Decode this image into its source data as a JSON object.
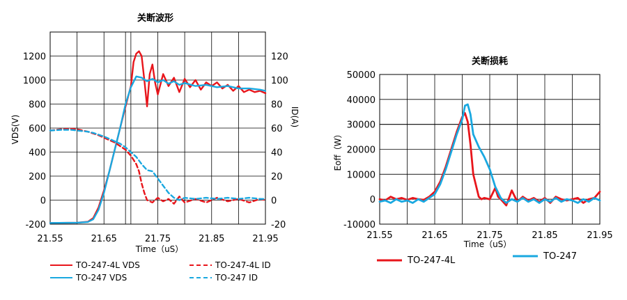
{
  "chart_data": [
    {
      "type": "line",
      "title": "关断波形",
      "xlabel": "Time（uS）",
      "ylabel": "VDS(V)",
      "y2label": "ID(A)",
      "xlim": [
        21.55,
        21.95
      ],
      "ylim": [
        -200,
        1400
      ],
      "y2lim": [
        -20,
        140
      ],
      "xticks": [
        "21.55",
        "21.65",
        "21.75",
        "21.85",
        "21.95"
      ],
      "yticks": [
        "-200",
        "0",
        "200",
        "400",
        "600",
        "800",
        "1000",
        "1200"
      ],
      "y2ticks": [
        "-20",
        "0",
        "20",
        "40",
        "60",
        "80",
        "100",
        "120"
      ],
      "cursor_x": 21.69,
      "grid": true,
      "series": [
        {
          "name": "TO-247-4L VDS",
          "axis": "left",
          "style": "solid",
          "color": "#e8151b",
          "x": [
            21.55,
            21.6,
            21.62,
            21.63,
            21.64,
            21.65,
            21.66,
            21.67,
            21.68,
            21.69,
            21.7,
            21.705,
            21.71,
            21.715,
            21.72,
            21.725,
            21.73,
            21.735,
            21.74,
            21.745,
            21.75,
            21.76,
            21.77,
            21.78,
            21.79,
            21.8,
            21.81,
            21.82,
            21.83,
            21.84,
            21.85,
            21.86,
            21.87,
            21.88,
            21.89,
            21.9,
            21.91,
            21.92,
            21.93,
            21.94,
            21.95
          ],
          "y": [
            -190,
            -188,
            -180,
            -150,
            -60,
            80,
            240,
            420,
            600,
            780,
            950,
            1150,
            1220,
            1240,
            1200,
            1000,
            780,
            1050,
            1130,
            980,
            880,
            1050,
            950,
            1020,
            900,
            1010,
            940,
            1000,
            920,
            980,
            950,
            980,
            930,
            960,
            910,
            950,
            900,
            920,
            900,
            910,
            890
          ]
        },
        {
          "name": "TO-247 VDS",
          "axis": "left",
          "style": "solid",
          "color": "#1aa8e0",
          "x": [
            21.55,
            21.6,
            21.62,
            21.63,
            21.64,
            21.65,
            21.66,
            21.67,
            21.68,
            21.69,
            21.7,
            21.71,
            21.72,
            21.73,
            21.74,
            21.75,
            21.76,
            21.77,
            21.78,
            21.79,
            21.8,
            21.82,
            21.84,
            21.86,
            21.88,
            21.9,
            21.92,
            21.94,
            21.95
          ],
          "y": [
            -190,
            -188,
            -182,
            -160,
            -80,
            60,
            240,
            420,
            600,
            800,
            940,
            1030,
            1020,
            990,
            1010,
            980,
            1000,
            970,
            990,
            960,
            975,
            950,
            960,
            940,
            950,
            930,
            930,
            920,
            910
          ]
        },
        {
          "name": "TO-247-4L ID",
          "axis": "right",
          "style": "dashed",
          "color": "#e8151b",
          "x": [
            21.55,
            21.57,
            21.59,
            21.6,
            21.61,
            21.62,
            21.63,
            21.64,
            21.65,
            21.66,
            21.67,
            21.68,
            21.69,
            21.7,
            21.71,
            21.715,
            21.72,
            21.725,
            21.73,
            21.74,
            21.75,
            21.76,
            21.77,
            21.78,
            21.79,
            21.8,
            21.82,
            21.84,
            21.86,
            21.88,
            21.9,
            21.92,
            21.94,
            21.95
          ],
          "y": [
            58,
            59,
            59.5,
            59,
            58,
            57,
            55.5,
            54,
            52,
            50,
            48,
            45,
            42,
            37,
            30,
            24,
            14,
            6,
            0,
            -2,
            2,
            -1,
            1,
            -3,
            3,
            -2,
            1,
            -2,
            2,
            -1,
            1,
            -2,
            1,
            0
          ]
        },
        {
          "name": "TO-247 ID",
          "axis": "right",
          "style": "dashed",
          "color": "#1aa8e0",
          "x": [
            21.55,
            21.57,
            21.59,
            21.6,
            21.61,
            21.62,
            21.63,
            21.64,
            21.65,
            21.66,
            21.67,
            21.68,
            21.69,
            21.7,
            21.71,
            21.72,
            21.73,
            21.74,
            21.75,
            21.76,
            21.77,
            21.78,
            21.79,
            21.8,
            21.82,
            21.84,
            21.86,
            21.88,
            21.9,
            21.92,
            21.94,
            21.95
          ],
          "y": [
            58,
            58.5,
            58.5,
            58,
            57.5,
            57,
            56,
            54.5,
            53,
            51,
            49,
            47,
            44,
            40,
            36,
            30,
            25,
            24,
            18,
            12,
            6,
            2,
            0,
            2,
            1,
            2,
            1,
            2,
            1,
            2,
            1,
            1
          ]
        }
      ]
    },
    {
      "type": "line",
      "title": "关断损耗",
      "xlabel": "Time（uS）",
      "ylabel": "Eoff（W）",
      "xlim": [
        21.55,
        21.95
      ],
      "ylim": [
        -10000,
        50000
      ],
      "xticks": [
        "21.55",
        "21.65",
        "21.75",
        "21.85",
        "21.95"
      ],
      "yticks": [
        "-10000",
        "0",
        "10000",
        "20000",
        "30000",
        "40000",
        "50000"
      ],
      "grid": true,
      "series": [
        {
          "name": "TO-247-4L",
          "style": "solid",
          "color": "#e8151b",
          "x": [
            21.55,
            21.56,
            21.57,
            21.58,
            21.59,
            21.6,
            21.61,
            21.62,
            21.63,
            21.64,
            21.65,
            21.66,
            21.67,
            21.68,
            21.69,
            21.7,
            21.705,
            21.71,
            21.715,
            21.72,
            21.73,
            21.735,
            21.74,
            21.75,
            21.76,
            21.765,
            21.77,
            21.78,
            21.79,
            21.8,
            21.81,
            21.82,
            21.83,
            21.84,
            21.85,
            21.86,
            21.87,
            21.88,
            21.89,
            21.9,
            21.91,
            21.92,
            21.93,
            21.94,
            21.95
          ],
          "y": [
            0,
            -500,
            1000,
            0,
            500,
            -300,
            500,
            0,
            -300,
            1000,
            3000,
            7000,
            13000,
            20000,
            27000,
            33000,
            34500,
            31000,
            22000,
            10000,
            1000,
            0,
            500,
            0,
            4500,
            1000,
            0,
            -2500,
            3500,
            -1000,
            1000,
            -500,
            500,
            -1000,
            500,
            -1500,
            1000,
            0,
            -500,
            0,
            500,
            -1500,
            0,
            500,
            3000
          ]
        },
        {
          "name": "TO-247",
          "style": "solid",
          "color": "#1aa8e0",
          "x": [
            21.55,
            21.56,
            21.57,
            21.58,
            21.59,
            21.6,
            21.61,
            21.62,
            21.63,
            21.64,
            21.65,
            21.66,
            21.67,
            21.68,
            21.69,
            21.7,
            21.705,
            21.71,
            21.715,
            21.72,
            21.73,
            21.74,
            21.75,
            21.76,
            21.77,
            21.78,
            21.79,
            21.8,
            21.81,
            21.82,
            21.83,
            21.84,
            21.85,
            21.86,
            21.87,
            21.88,
            21.89,
            21.9,
            21.91,
            21.92,
            21.93,
            21.94,
            21.95
          ],
          "y": [
            -1000,
            -500,
            -1500,
            0,
            -1000,
            -500,
            -1500,
            0,
            -1000,
            500,
            2000,
            6000,
            12000,
            19000,
            26000,
            32000,
            37500,
            38000,
            34000,
            26000,
            21000,
            17000,
            12000,
            5000,
            500,
            -1500,
            0,
            -1000,
            500,
            -1000,
            0,
            -1500,
            0,
            -1000,
            500,
            -1000,
            0,
            -500,
            -1500,
            0,
            -1000,
            500,
            -500
          ]
        }
      ]
    }
  ]
}
